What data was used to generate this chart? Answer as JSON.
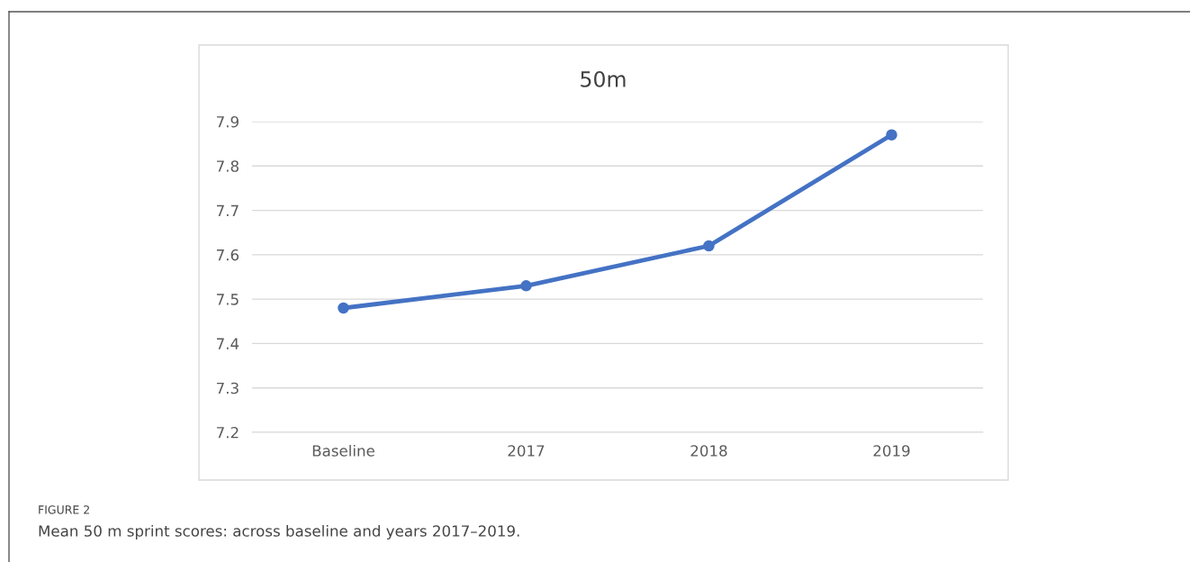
{
  "chart_data": {
    "type": "line",
    "title": "50m",
    "categories": [
      "Baseline",
      "2017",
      "2018",
      "2019"
    ],
    "series": [
      {
        "color": "#4472c4",
        "values": [
          7.48,
          7.53,
          7.62,
          7.87
        ]
      }
    ],
    "ylim": [
      7.2,
      7.9
    ],
    "yticks": [
      7.2,
      7.3,
      7.4,
      7.5,
      7.6,
      7.7,
      7.8,
      7.9
    ],
    "grid": "y",
    "legend": false,
    "marker": "circle",
    "line_style": "solid",
    "annotations": [
      "FIGURE 2",
      "Mean 50 m sprint scores: across baseline and years 2017–2019."
    ]
  }
}
